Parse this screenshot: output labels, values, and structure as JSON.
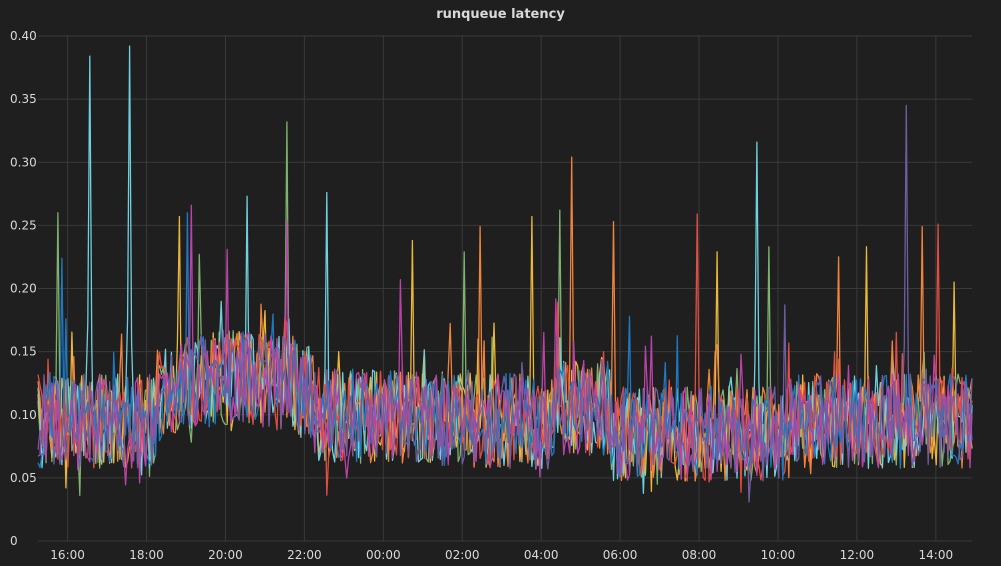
{
  "panel": {
    "title": "runqueue latency"
  },
  "chart_data": {
    "type": "line",
    "title": "runqueue latency",
    "xlabel": "",
    "ylabel": "",
    "ylim": [
      0,
      0.4
    ],
    "yticks": [
      "0",
      "0.05",
      "0.10",
      "0.15",
      "0.20",
      "0.25",
      "0.30",
      "0.35",
      "0.40"
    ],
    "xlim": [
      "15:15",
      "14:55"
    ],
    "xticks": [
      "16:00",
      "18:00",
      "20:00",
      "22:00",
      "00:00",
      "02:00",
      "04:00",
      "06:00",
      "08:00",
      "10:00",
      "12:00",
      "14:00"
    ],
    "grid": true,
    "legend": "none",
    "series": [
      {
        "color": "#7eb26d",
        "spikes": [
          [
            0.5,
            0.26
          ],
          [
            4.1,
            0.227
          ],
          [
            6.3,
            0.332
          ],
          [
            10.8,
            0.229
          ],
          [
            13.2,
            0.262
          ],
          [
            18.5,
            0.233
          ]
        ],
        "values": []
      },
      {
        "color": "#eab839",
        "spikes": [
          [
            3.6,
            0.257
          ],
          [
            9.5,
            0.238
          ],
          [
            12.5,
            0.257
          ],
          [
            17.2,
            0.229
          ],
          [
            21.0,
            0.233
          ],
          [
            23.2,
            0.205
          ]
        ],
        "values": []
      },
      {
        "color": "#6ed0e0",
        "spikes": [
          [
            1.3,
            0.384
          ],
          [
            2.3,
            0.392
          ],
          [
            5.3,
            0.273
          ],
          [
            7.3,
            0.276
          ],
          [
            18.2,
            0.316
          ],
          [
            25.3,
            0.241
          ]
        ],
        "values": []
      },
      {
        "color": "#ef843c",
        "spikes": [
          [
            11.2,
            0.249
          ],
          [
            13.5,
            0.304
          ],
          [
            14.6,
            0.253
          ],
          [
            20.3,
            0.225
          ],
          [
            22.4,
            0.249
          ],
          [
            24.8,
            0.209
          ]
        ],
        "values": []
      },
      {
        "color": "#e24d42",
        "spikes": [
          [
            16.7,
            0.259
          ],
          [
            22.8,
            0.251
          ],
          [
            24.9,
            0.239
          ],
          [
            25.6,
            0.183
          ]
        ],
        "values": []
      },
      {
        "color": "#1f78c1",
        "spikes": [
          [
            0.6,
            0.224
          ],
          [
            3.8,
            0.26
          ],
          [
            15.0,
            0.178
          ]
        ],
        "values": []
      },
      {
        "color": "#ba43a9",
        "spikes": [
          [
            3.9,
            0.266
          ],
          [
            4.8,
            0.231
          ],
          [
            6.3,
            0.254
          ],
          [
            9.2,
            0.207
          ],
          [
            24.3,
            0.208
          ]
        ],
        "values": []
      },
      {
        "color": "#705da0",
        "spikes": [
          [
            22.0,
            0.345
          ],
          [
            18.9,
            0.187
          ]
        ],
        "values": []
      }
    ]
  }
}
